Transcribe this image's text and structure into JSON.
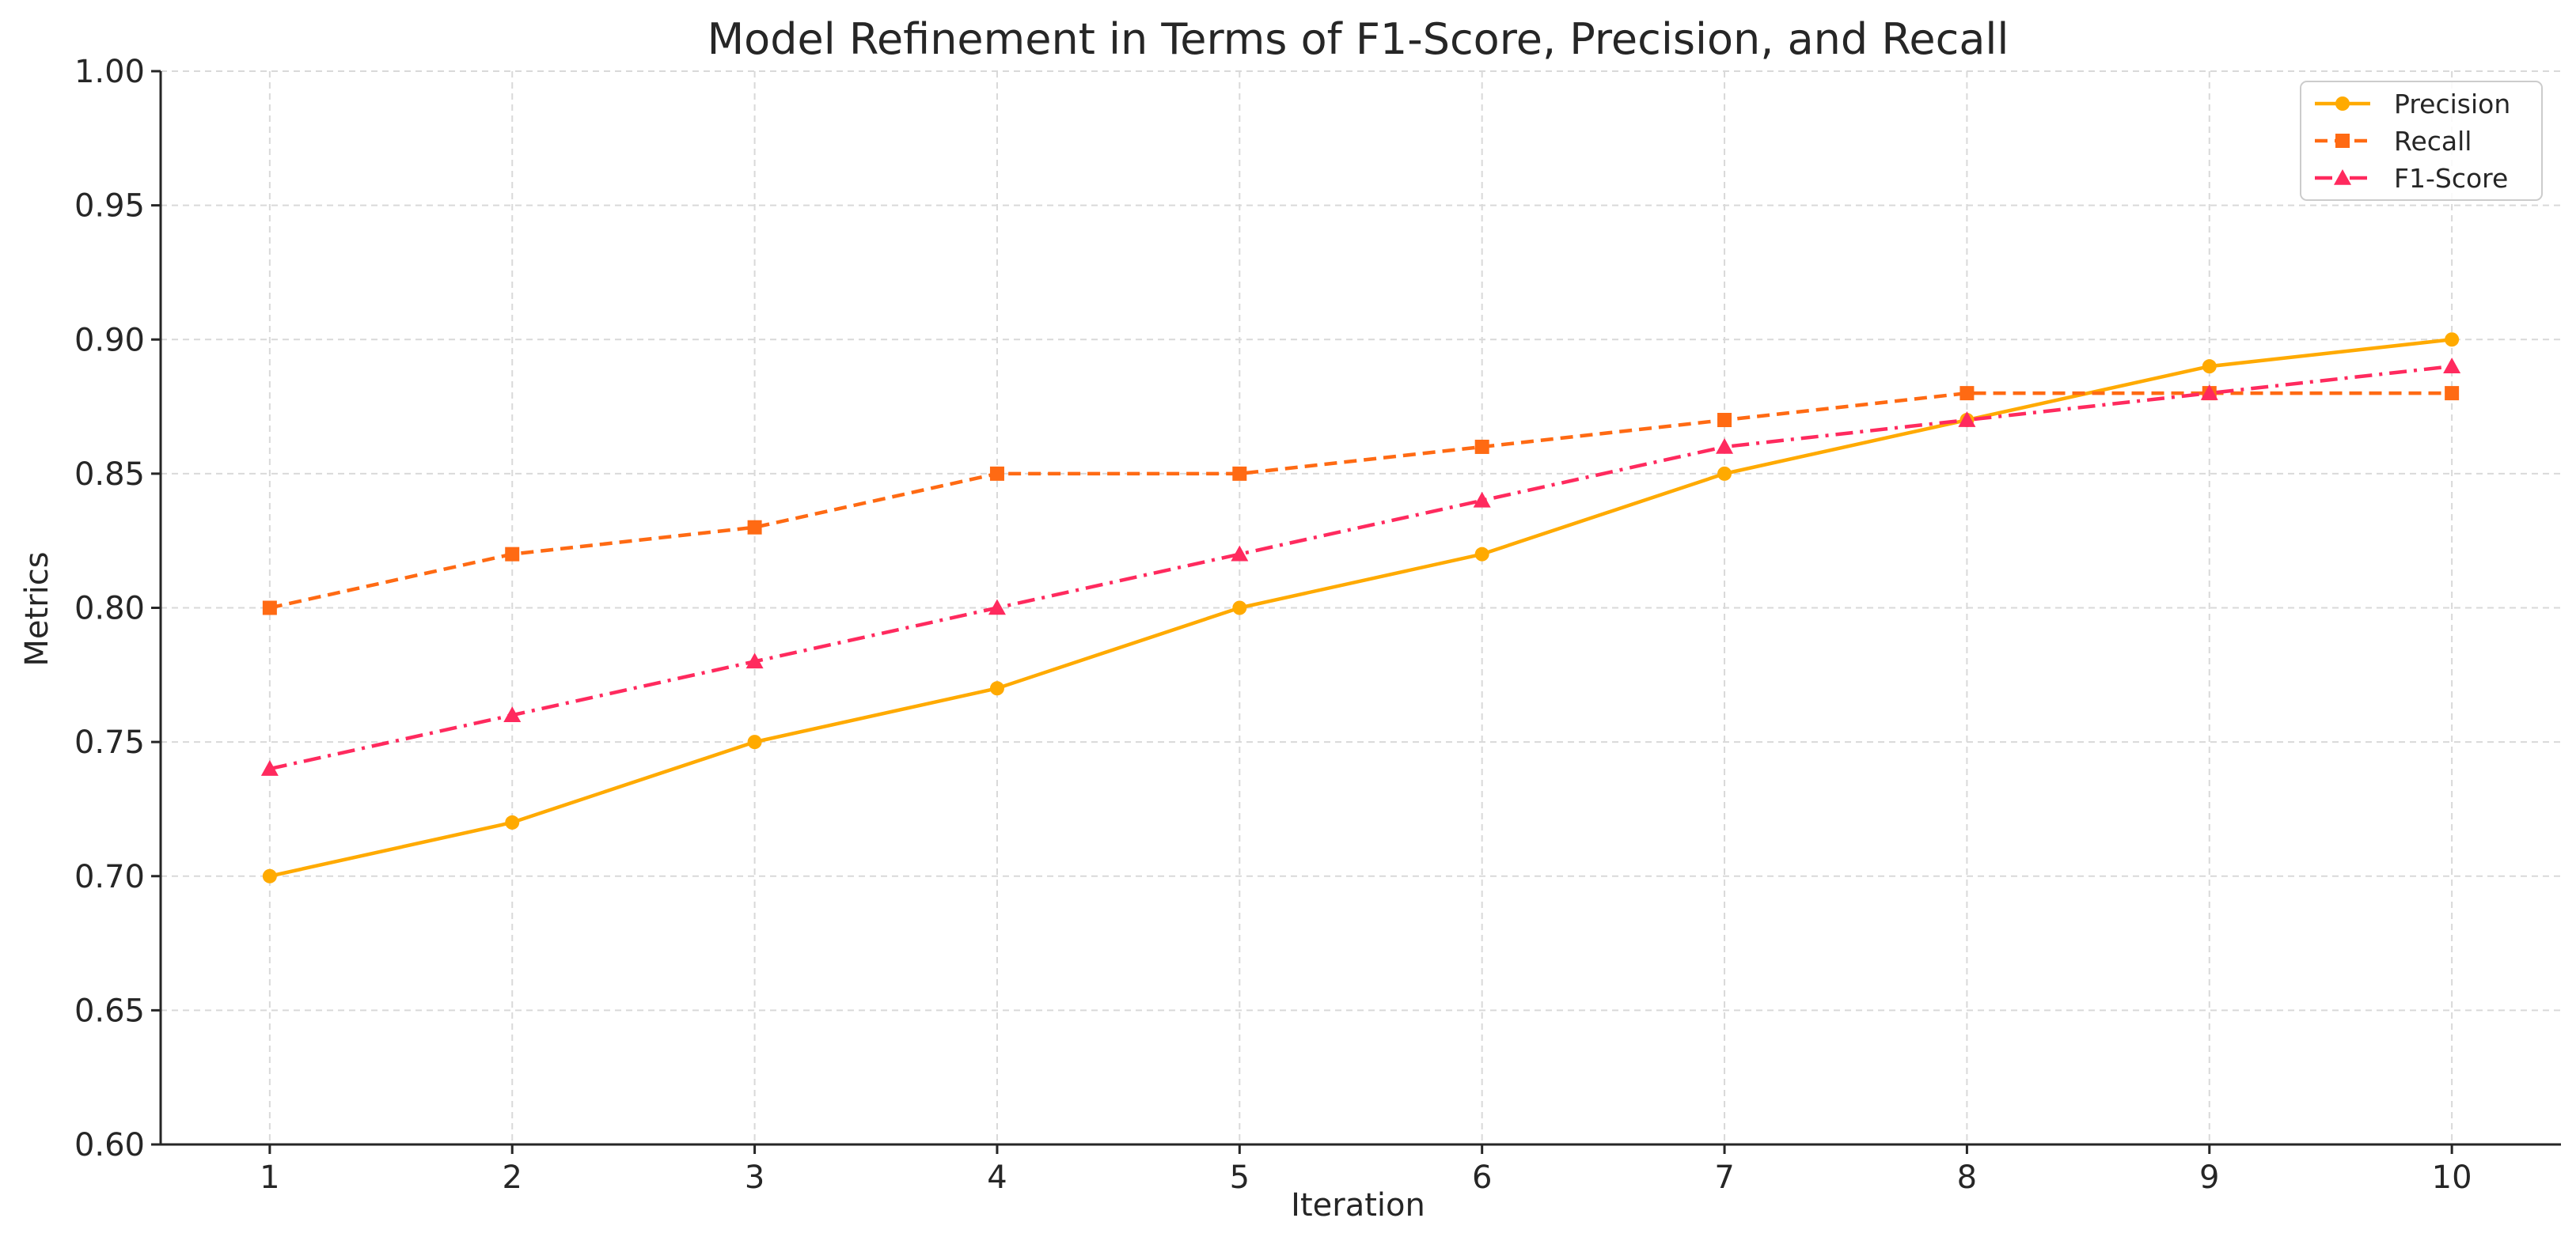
{
  "chart_data": {
    "type": "line",
    "title": "Model Refinement in Terms of F1-Score, Precision, and Recall",
    "xlabel": "Iteration",
    "ylabel": "Metrics",
    "x": [
      1,
      2,
      3,
      4,
      5,
      6,
      7,
      8,
      9,
      10
    ],
    "xticks": [
      "1",
      "2",
      "3",
      "4",
      "5",
      "6",
      "7",
      "8",
      "9",
      "10"
    ],
    "yticks": [
      "0.60",
      "0.65",
      "0.70",
      "0.75",
      "0.80",
      "0.85",
      "0.90",
      "0.95",
      "1.00"
    ],
    "ylim": [
      0.6,
      1.0
    ],
    "xlim": [
      0.55,
      10.45
    ],
    "grid": true,
    "legend_position": "top-right",
    "series": [
      {
        "name": "Precision",
        "color": "#FFAA00",
        "line_style": "solid",
        "marker": "circle",
        "values": [
          0.7,
          0.72,
          0.75,
          0.77,
          0.8,
          0.82,
          0.85,
          0.87,
          0.89,
          0.9
        ]
      },
      {
        "name": "Recall",
        "color": "#FF6A13",
        "line_style": "dashed",
        "marker": "square",
        "values": [
          0.8,
          0.82,
          0.83,
          0.85,
          0.85,
          0.86,
          0.87,
          0.88,
          0.88,
          0.88
        ]
      },
      {
        "name": "F1-Score",
        "color": "#FF2A5E",
        "line_style": "dashdot",
        "marker": "triangle",
        "values": [
          0.74,
          0.76,
          0.78,
          0.8,
          0.82,
          0.84,
          0.86,
          0.87,
          0.88,
          0.89
        ]
      }
    ]
  }
}
